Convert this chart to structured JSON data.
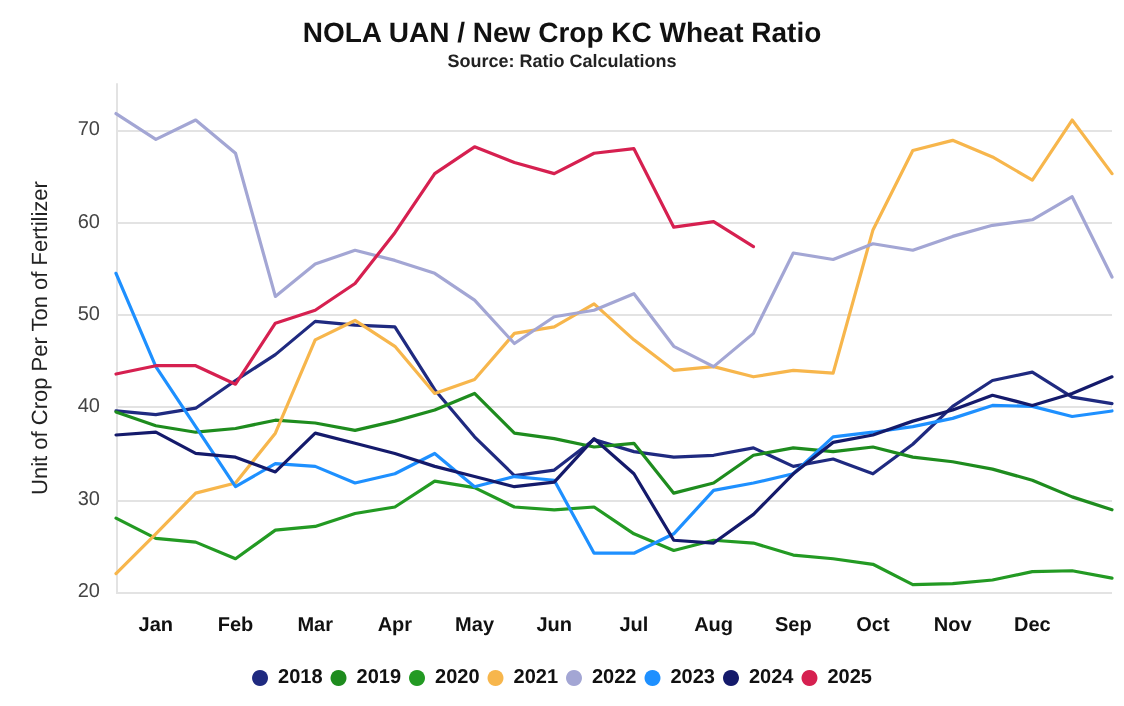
{
  "chart_data": {
    "type": "line",
    "title": "NOLA UAN / New Crop KC Wheat Ratio",
    "subtitle": "Source: Ratio Calculations",
    "ylabel": "Unit of Crop Per Ton of Fertilizer",
    "categories": [
      null,
      "Jan",
      null,
      "Feb",
      null,
      "Mar",
      null,
      "Apr",
      null,
      "May",
      null,
      "Jun",
      null,
      "Jul",
      null,
      "Aug",
      null,
      "Sep",
      null,
      "Oct",
      null,
      "Nov",
      null,
      "Dec",
      null,
      null
    ],
    "ylim": [
      20,
      75
    ],
    "yticks": [
      20,
      30,
      40,
      50,
      60,
      70
    ],
    "grid": "y",
    "legend": "bottom",
    "marker": "none",
    "line_style": "solid",
    "series": [
      {
        "name": "2018",
        "color": "#1f2a80",
        "values": [
          39.6,
          39.2,
          39.9,
          42.9,
          45.7,
          49.3,
          48.9,
          48.7,
          41.9,
          36.8,
          32.6,
          33.2,
          36.5,
          35.2,
          34.6,
          34.8,
          35.6,
          33.6,
          34.4,
          32.8,
          36,
          40.1,
          42.9,
          43.8,
          41.1,
          40.4
        ]
      },
      {
        "name": "2019",
        "color": "#1e8c1e",
        "values": [
          39.5,
          38,
          37.3,
          37.7,
          38.6,
          38.3,
          37.5,
          38.5,
          39.7,
          41.5,
          37.2,
          36.6,
          35.7,
          36.1,
          30.7,
          31.8,
          34.8,
          35.6,
          35.2,
          35.7,
          34.6,
          34.1,
          33.3,
          32.1,
          30.3,
          28.9
        ]
      },
      {
        "name": "2020",
        "color": "#239a23",
        "values": [
          28,
          25.8,
          25.4,
          23.6,
          26.7,
          27.1,
          28.5,
          29.2,
          32,
          31.3,
          29.2,
          28.9,
          29.2,
          26.3,
          24.5,
          25.6,
          25.3,
          24,
          23.6,
          23,
          20.8,
          20.9,
          21.3,
          22.2,
          22.3,
          21.5
        ]
      },
      {
        "name": "2021",
        "color": "#f7b64c",
        "values": [
          22,
          26.3,
          30.7,
          31.8,
          37.2,
          47.3,
          49.4,
          46.6,
          41.5,
          43,
          48,
          48.7,
          51.2,
          47.3,
          44,
          44.4,
          43.3,
          44,
          43.7,
          59.2,
          67.8,
          68.9,
          67.1,
          64.6,
          71.1,
          65.3
        ]
      },
      {
        "name": "2022",
        "color": "#a3a6d4",
        "values": [
          71.8,
          69,
          71.1,
          67.5,
          52,
          55.5,
          57,
          55.9,
          54.5,
          51.6,
          46.9,
          49.8,
          50.5,
          52.3,
          46.6,
          44.4,
          48,
          56.7,
          56,
          57.7,
          57,
          58.5,
          59.7,
          60.3,
          62.8,
          54.1
        ]
      },
      {
        "name": "2023",
        "color": "#1e90ff",
        "values": [
          54.5,
          44.4,
          37.9,
          31.4,
          33.9,
          33.6,
          31.8,
          32.8,
          35,
          31.4,
          32.5,
          32.1,
          24.2,
          24.2,
          26.3,
          31,
          31.8,
          32.8,
          36.8,
          37.3,
          37.9,
          38.8,
          40.2,
          40.1,
          39,
          39.6
        ]
      },
      {
        "name": "2024",
        "color": "#141a6b",
        "values": [
          37,
          37.3,
          35,
          34.6,
          33,
          37.2,
          36.1,
          35,
          33.6,
          32.5,
          31.4,
          31.9,
          36.6,
          32.8,
          25.6,
          25.3,
          28.4,
          32.8,
          36.2,
          37,
          38.5,
          39.7,
          41.3,
          40.2,
          41.5,
          43.3
        ]
      },
      {
        "name": "2025",
        "color": "#d62050",
        "values": [
          43.6,
          44.5,
          44.5,
          42.5,
          49.1,
          50.5,
          53.4,
          58.9,
          65.3,
          68.2,
          66.5,
          65.3,
          67.5,
          68,
          59.5,
          60.1,
          57.4,
          null,
          null,
          null,
          null,
          null,
          null,
          null,
          null,
          null
        ]
      }
    ]
  }
}
